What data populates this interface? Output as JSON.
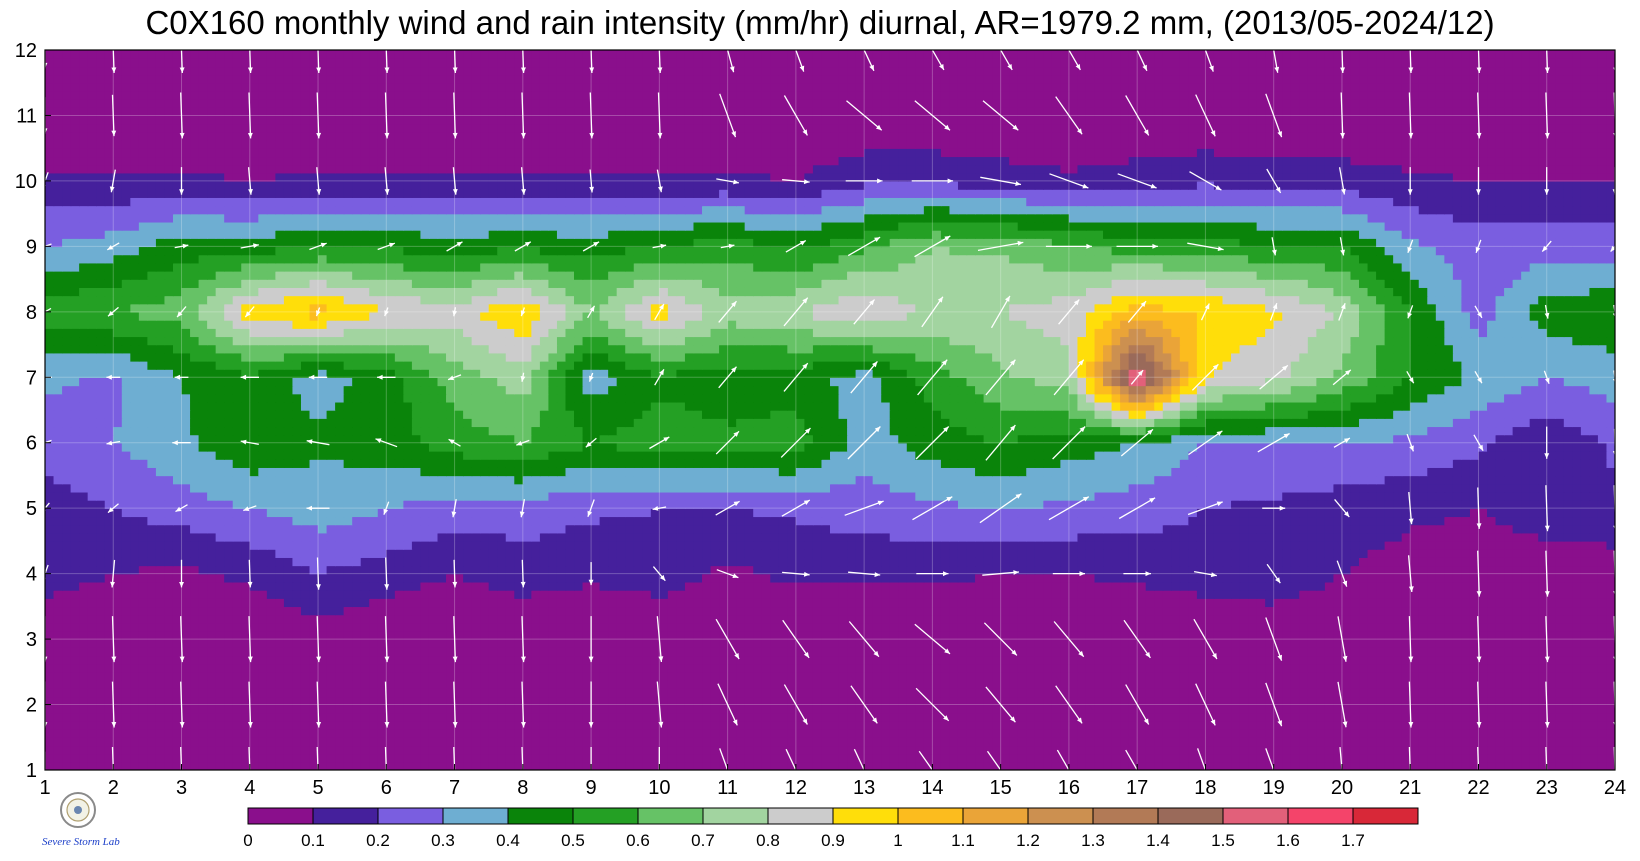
{
  "title": "C0X160 monthly wind and rain intensity (mm/hr) diurnal, AR=1979.2 mm, (2013/05-2024/12)",
  "logo": {
    "text": "Severe Storm Lab.",
    "seal": "university-seal"
  },
  "chart_data": {
    "type": "heatmap",
    "subtype": "filled-contour-with-wind-vectors",
    "x_label": "",
    "y_label": "",
    "x_range": [
      1,
      24
    ],
    "y_range": [
      1,
      12
    ],
    "x_ticks": [
      "1",
      "2",
      "3",
      "4",
      "5",
      "6",
      "7",
      "8",
      "9",
      "10",
      "11",
      "12",
      "13",
      "14",
      "15",
      "16",
      "17",
      "18",
      "19",
      "20",
      "21",
      "22",
      "23",
      "24"
    ],
    "y_ticks": [
      "1",
      "2",
      "3",
      "4",
      "5",
      "6",
      "7",
      "8",
      "9",
      "10",
      "11",
      "12"
    ],
    "colorbar": {
      "levels": [
        0,
        0.1,
        0.2,
        0.3,
        0.4,
        0.5,
        0.6,
        0.7,
        0.8,
        0.9,
        1,
        1.1,
        1.2,
        1.3,
        1.4,
        1.5,
        1.6,
        1.7
      ],
      "labels": [
        "0",
        "0.1",
        "0.2",
        "0.3",
        "0.4",
        "0.5",
        "0.6",
        "0.7",
        "0.8",
        "0.9",
        "1",
        "1.1",
        "1.2",
        "1.3",
        "1.4",
        "1.5",
        "1.6",
        "1.7"
      ],
      "colors": [
        "#8a0f8c",
        "#45209c",
        "#7a5ee0",
        "#6eaed2",
        "#0a840a",
        "#24a024",
        "#66c266",
        "#a2d4a0",
        "#cccccc",
        "#ffde0a",
        "#fcbc1e",
        "#eaa438",
        "#cc9050",
        "#b27a56",
        "#9a6a5a",
        "#e2607a",
        "#f4446a",
        "#d82838"
      ],
      "contour_line_color": "#f0a020"
    },
    "grid": true,
    "rain_intensity": [
      [
        0.0,
        0.0,
        0.0,
        0.0,
        0.0,
        0.0,
        0.0,
        0.0,
        0.0,
        0.0,
        0.0,
        0.0,
        0.0,
        0.0,
        0.0,
        0.0,
        0.0,
        0.0,
        0.0,
        0.0,
        0.0,
        0.0,
        0.0,
        0.0
      ],
      [
        0.0,
        0.0,
        0.0,
        0.0,
        0.0,
        0.0,
        0.0,
        0.0,
        0.0,
        0.0,
        0.0,
        0.0,
        0.0,
        0.0,
        0.0,
        0.0,
        0.0,
        0.0,
        0.0,
        0.0,
        0.0,
        0.0,
        0.0,
        0.0
      ],
      [
        0.0,
        0.0,
        0.0,
        0.0,
        0.05,
        0.0,
        0.0,
        0.0,
        0.0,
        0.0,
        0.0,
        0.0,
        0.0,
        0.0,
        0.0,
        0.0,
        0.0,
        0.0,
        0.0,
        0.0,
        0.0,
        0.0,
        0.0,
        0.0
      ],
      [
        0.15,
        0.1,
        0.08,
        0.12,
        0.2,
        0.15,
        0.1,
        0.15,
        0.12,
        0.15,
        0.08,
        0.12,
        0.12,
        0.12,
        0.1,
        0.1,
        0.12,
        0.15,
        0.18,
        0.1,
        0.06,
        0.04,
        0.04,
        0.04
      ],
      [
        0.15,
        0.2,
        0.25,
        0.3,
        0.35,
        0.3,
        0.25,
        0.25,
        0.22,
        0.2,
        0.2,
        0.22,
        0.25,
        0.28,
        0.3,
        0.28,
        0.25,
        0.2,
        0.18,
        0.15,
        0.12,
        0.1,
        0.15,
        0.18
      ],
      [
        0.25,
        0.3,
        0.38,
        0.48,
        0.42,
        0.45,
        0.55,
        0.6,
        0.5,
        0.55,
        0.52,
        0.55,
        0.35,
        0.45,
        0.5,
        0.45,
        0.4,
        0.3,
        0.3,
        0.3,
        0.28,
        0.22,
        0.12,
        0.22
      ],
      [
        0.32,
        0.28,
        0.4,
        0.48,
        0.35,
        0.45,
        0.65,
        0.75,
        0.35,
        0.48,
        0.45,
        0.45,
        0.35,
        0.55,
        0.68,
        0.75,
        1.65,
        0.9,
        0.82,
        0.68,
        0.5,
        0.38,
        0.3,
        0.35
      ],
      [
        0.55,
        0.6,
        0.65,
        0.95,
        1.05,
        0.9,
        0.85,
        1.0,
        0.7,
        0.95,
        0.75,
        0.8,
        0.9,
        0.78,
        0.8,
        0.85,
        1.05,
        1.0,
        0.92,
        0.78,
        0.5,
        0.25,
        0.45,
        0.48
      ],
      [
        0.3,
        0.35,
        0.45,
        0.45,
        0.5,
        0.48,
        0.45,
        0.48,
        0.45,
        0.5,
        0.55,
        0.48,
        0.58,
        0.7,
        0.68,
        0.62,
        0.55,
        0.55,
        0.5,
        0.5,
        0.32,
        0.25,
        0.25,
        0.25
      ],
      [
        0.12,
        0.12,
        0.12,
        0.1,
        0.12,
        0.12,
        0.12,
        0.12,
        0.12,
        0.12,
        0.12,
        0.1,
        0.18,
        0.18,
        0.15,
        0.12,
        0.15,
        0.18,
        0.15,
        0.15,
        0.12,
        0.1,
        0.1,
        0.1
      ],
      [
        0.0,
        0.0,
        0.0,
        0.0,
        0.0,
        0.0,
        0.0,
        0.0,
        0.0,
        0.0,
        0.0,
        0.0,
        0.0,
        0.0,
        0.0,
        0.0,
        0.0,
        0.0,
        0.0,
        0.0,
        0.0,
        0.0,
        0.0,
        0.0
      ],
      [
        0.0,
        0.0,
        0.0,
        0.0,
        0.0,
        0.0,
        0.0,
        0.0,
        0.0,
        0.0,
        0.0,
        0.0,
        0.0,
        0.0,
        0.0,
        0.0,
        0.0,
        0.0,
        0.0,
        0.0,
        0.0,
        0.0,
        0.0,
        0.0
      ]
    ],
    "wind_direction_deg": [
      [
        180,
        178,
        178,
        178,
        178,
        178,
        178,
        178,
        180,
        180,
        160,
        155,
        155,
        145,
        145,
        150,
        150,
        160,
        160,
        175,
        178,
        178,
        178,
        178
      ],
      [
        180,
        178,
        178,
        178,
        178,
        178,
        178,
        178,
        180,
        175,
        155,
        150,
        145,
        135,
        140,
        145,
        150,
        155,
        160,
        170,
        178,
        178,
        178,
        178
      ],
      [
        180,
        178,
        178,
        178,
        178,
        178,
        178,
        178,
        180,
        175,
        150,
        145,
        140,
        130,
        135,
        140,
        145,
        150,
        160,
        170,
        178,
        178,
        178,
        178
      ],
      [
        200,
        185,
        180,
        178,
        178,
        178,
        178,
        178,
        180,
        140,
        110,
        95,
        95,
        90,
        85,
        90,
        90,
        100,
        145,
        160,
        175,
        178,
        178,
        178
      ],
      [
        220,
        230,
        240,
        250,
        270,
        200,
        190,
        190,
        200,
        260,
        60,
        60,
        70,
        60,
        55,
        60,
        60,
        70,
        90,
        140,
        175,
        178,
        178,
        178
      ],
      [
        250,
        260,
        270,
        280,
        280,
        290,
        300,
        250,
        230,
        60,
        45,
        45,
        45,
        45,
        40,
        45,
        50,
        55,
        60,
        60,
        160,
        150,
        180,
        178
      ],
      [
        270,
        270,
        270,
        270,
        270,
        270,
        250,
        190,
        200,
        30,
        40,
        40,
        40,
        40,
        40,
        40,
        40,
        45,
        50,
        50,
        150,
        150,
        160,
        170
      ],
      [
        240,
        230,
        220,
        220,
        200,
        200,
        190,
        200,
        30,
        30,
        40,
        40,
        40,
        35,
        30,
        40,
        40,
        25,
        20,
        20,
        200,
        150,
        170,
        170
      ],
      [
        250,
        240,
        80,
        80,
        70,
        70,
        60,
        60,
        60,
        80,
        80,
        60,
        60,
        60,
        80,
        90,
        90,
        100,
        170,
        170,
        200,
        200,
        220,
        220
      ],
      [
        200,
        190,
        180,
        175,
        175,
        175,
        175,
        175,
        175,
        170,
        100,
        95,
        90,
        90,
        100,
        110,
        110,
        120,
        150,
        170,
        180,
        180,
        180,
        180
      ],
      [
        180,
        178,
        178,
        178,
        178,
        178,
        178,
        178,
        178,
        178,
        160,
        150,
        130,
        130,
        130,
        145,
        150,
        155,
        160,
        178,
        178,
        178,
        178,
        178
      ],
      [
        180,
        178,
        178,
        178,
        178,
        178,
        178,
        178,
        178,
        178,
        165,
        160,
        155,
        150,
        150,
        150,
        155,
        160,
        170,
        178,
        178,
        178,
        178,
        178
      ]
    ],
    "wind_speed_rel": [
      [
        0.8,
        1,
        1,
        1,
        1,
        1,
        1,
        1,
        1,
        1,
        1,
        1,
        1,
        1,
        1,
        1,
        1,
        1,
        1,
        1,
        1,
        1,
        1,
        1
      ],
      [
        1,
        1,
        1,
        1,
        1,
        1,
        1,
        1,
        1,
        1,
        1,
        1,
        1,
        1,
        1,
        1,
        1,
        1,
        1,
        1,
        1,
        1,
        1,
        1
      ],
      [
        1,
        1,
        1,
        1,
        1,
        1,
        1,
        1,
        1,
        1,
        1,
        1,
        1,
        1,
        1,
        1,
        1,
        1,
        1,
        1,
        1,
        1,
        1,
        1
      ],
      [
        0.4,
        0.6,
        0.6,
        0.6,
        0.7,
        0.7,
        0.6,
        0.6,
        0.5,
        0.4,
        0.5,
        0.6,
        0.7,
        0.7,
        0.8,
        0.7,
        0.6,
        0.5,
        0.5,
        0.6,
        0.8,
        1,
        1,
        1
      ],
      [
        0.3,
        0.3,
        0.3,
        0.3,
        0.5,
        0.3,
        0.4,
        0.4,
        0.4,
        0.3,
        0.6,
        0.7,
        0.9,
        1,
        1.1,
        1,
        0.9,
        0.8,
        0.5,
        0.5,
        0.7,
        0.9,
        1,
        1
      ],
      [
        0.3,
        0.3,
        0.4,
        0.4,
        0.5,
        0.5,
        0.3,
        0.3,
        0.3,
        0.5,
        0.7,
        0.9,
        1,
        1,
        1,
        1,
        0.9,
        0.9,
        0.8,
        0.4,
        0.4,
        0.4,
        0.7,
        0.6
      ],
      [
        0.3,
        0.3,
        0.3,
        0.4,
        0.4,
        0.4,
        0.3,
        0.2,
        0.2,
        0.4,
        0.6,
        0.8,
        0.9,
        1,
        1,
        1,
        0.4,
        0.8,
        0.8,
        0.5,
        0.3,
        0.3,
        0.3,
        0.3
      ],
      [
        0.3,
        0.3,
        0.3,
        0.3,
        0.2,
        0.2,
        0.2,
        0.2,
        0.3,
        0.4,
        0.6,
        0.8,
        0.7,
        0.8,
        0.8,
        0.7,
        0.6,
        0.4,
        0.4,
        0.4,
        0.3,
        0.3,
        0.3,
        0.3
      ],
      [
        0.3,
        0.3,
        0.3,
        0.4,
        0.4,
        0.4,
        0.4,
        0.4,
        0.4,
        0.3,
        0.3,
        0.5,
        0.8,
        0.9,
        1,
        1,
        0.9,
        0.8,
        0.4,
        0.4,
        0.3,
        0.3,
        0.3,
        0.3
      ],
      [
        0.4,
        0.5,
        0.6,
        0.6,
        0.6,
        0.6,
        0.6,
        0.6,
        0.5,
        0.5,
        0.5,
        0.6,
        0.8,
        0.9,
        0.9,
        0.9,
        0.9,
        0.8,
        0.6,
        0.6,
        0.6,
        0.6,
        0.6,
        0.6
      ],
      [
        0.8,
        0.9,
        1,
        1,
        1,
        1,
        1,
        1,
        1,
        1,
        1,
        1,
        1,
        1,
        1,
        1,
        1,
        1,
        1,
        1,
        1,
        1,
        1,
        1
      ],
      [
        0.8,
        1,
        1,
        1,
        1,
        1,
        1,
        1,
        1,
        1,
        1,
        1,
        1,
        1,
        1,
        1,
        1,
        1,
        1,
        1,
        1,
        1,
        1,
        1
      ]
    ]
  }
}
